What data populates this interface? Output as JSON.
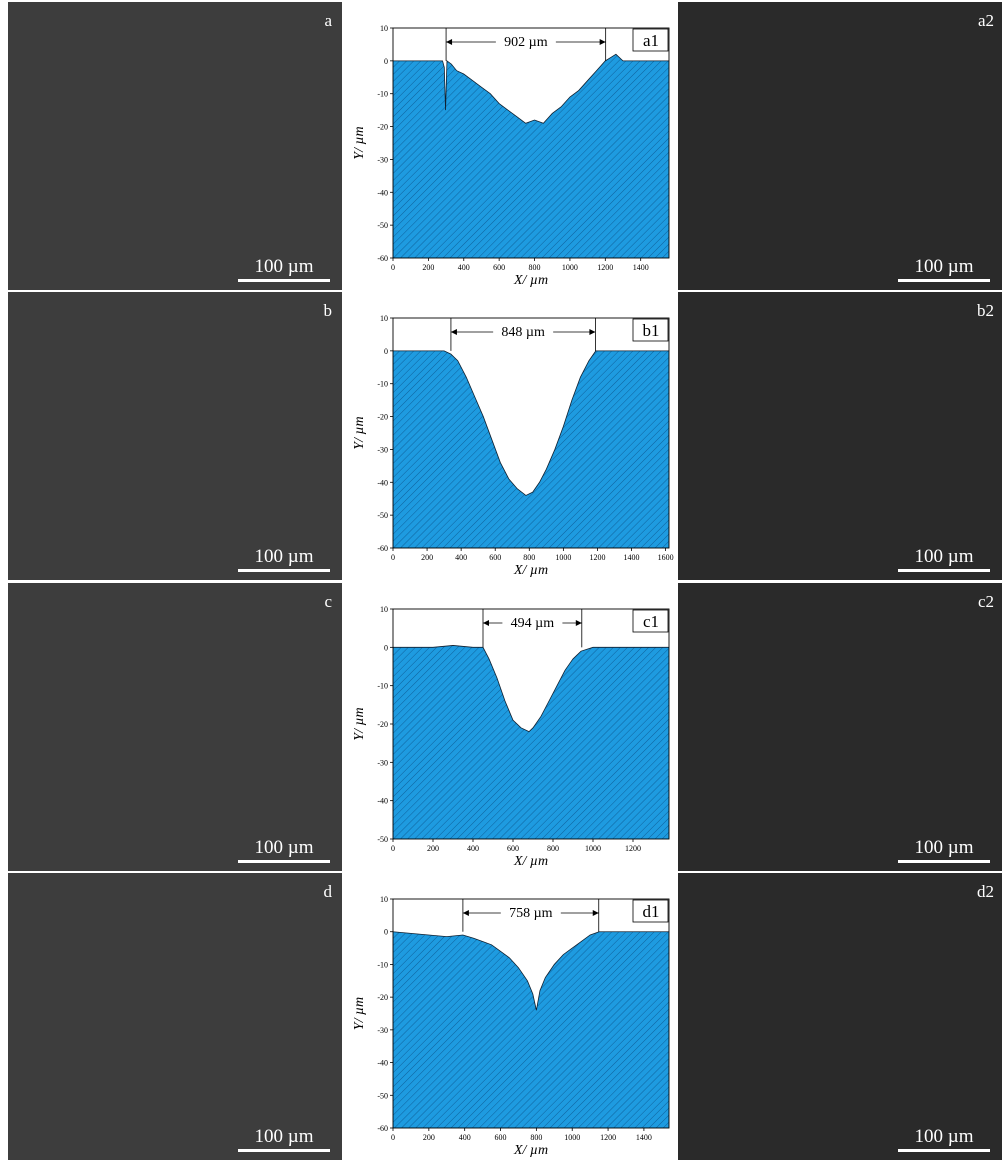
{
  "figure": {
    "micrographs": [
      {
        "label": "a",
        "scale": "100 µm"
      },
      {
        "label": "b",
        "scale": "100 µm"
      },
      {
        "label": "c",
        "scale": "100 µm"
      },
      {
        "label": "d",
        "scale": "100 µm"
      }
    ],
    "debris": [
      {
        "label": "a2",
        "scale": "100 µm"
      },
      {
        "label": "b2",
        "scale": "100 µm"
      },
      {
        "label": "c2",
        "scale": "100 µm"
      },
      {
        "label": "d2",
        "scale": "100 µm"
      }
    ]
  },
  "chart_data": [
    {
      "type": "area",
      "panel": "a1",
      "width_label": "902 µm",
      "xlabel": "X/ µm",
      "ylabel": "Y/ µm",
      "xlim": [
        0,
        1560
      ],
      "ylim": [
        -60,
        10
      ],
      "xticks": [
        0,
        200,
        400,
        600,
        800,
        1000,
        1200,
        1400
      ],
      "yticks": [
        10,
        0,
        -10,
        -20,
        -30,
        -40,
        -50,
        -60
      ],
      "width_span": [
        300,
        1202
      ],
      "x": [
        0,
        280,
        290,
        297,
        305,
        330,
        360,
        400,
        450,
        500,
        550,
        600,
        650,
        700,
        750,
        800,
        850,
        900,
        950,
        1000,
        1050,
        1100,
        1150,
        1200,
        1230,
        1260,
        1300,
        1400,
        1560
      ],
      "y": [
        0,
        0,
        -2,
        -15,
        0,
        -1,
        -3,
        -4,
        -6,
        -8,
        -10,
        -13,
        -15,
        -17,
        -19,
        -18,
        -19,
        -16,
        -14,
        -11,
        -9,
        -6,
        -3,
        0,
        1,
        2,
        0,
        0,
        0
      ]
    },
    {
      "type": "area",
      "panel": "b1",
      "width_label": "848 µm",
      "xlabel": "X/ µm",
      "ylabel": "Y/ µm",
      "xlim": [
        0,
        1620
      ],
      "ylim": [
        -60,
        10
      ],
      "xticks": [
        0,
        200,
        400,
        600,
        800,
        1000,
        1200,
        1400,
        1600
      ],
      "yticks": [
        10,
        0,
        -10,
        -20,
        -30,
        -40,
        -50,
        -60
      ],
      "width_span": [
        340,
        1188
      ],
      "x": [
        0,
        300,
        340,
        380,
        430,
        480,
        530,
        580,
        630,
        680,
        730,
        780,
        820,
        860,
        900,
        950,
        1000,
        1050,
        1100,
        1150,
        1190,
        1250,
        1620
      ],
      "y": [
        0,
        0,
        -1,
        -3,
        -8,
        -14,
        -20,
        -27,
        -34,
        -39,
        -42,
        -44,
        -43,
        -40,
        -36,
        -30,
        -23,
        -15,
        -8,
        -3,
        0,
        0,
        0
      ]
    },
    {
      "type": "area",
      "panel": "c1",
      "width_label": "494 µm",
      "xlabel": "X/ µm",
      "ylabel": "Y/ µm",
      "xlim": [
        0,
        1380
      ],
      "ylim": [
        -50,
        10
      ],
      "xticks": [
        0,
        200,
        400,
        600,
        800,
        1000,
        1200
      ],
      "yticks": [
        10,
        0,
        -10,
        -20,
        -30,
        -40,
        -50
      ],
      "width_span": [
        450,
        944
      ],
      "x": [
        0,
        200,
        300,
        400,
        450,
        480,
        520,
        560,
        600,
        640,
        680,
        700,
        740,
        780,
        820,
        860,
        900,
        940,
        1000,
        1100,
        1200,
        1380
      ],
      "y": [
        0,
        0,
        0.5,
        0,
        0,
        -3,
        -8,
        -14,
        -19,
        -21,
        -22,
        -21,
        -18,
        -14,
        -10,
        -6,
        -3,
        -1,
        0,
        0,
        0,
        0
      ]
    },
    {
      "type": "area",
      "panel": "d1",
      "width_label": "758 µm",
      "xlabel": "X/ µm",
      "ylabel": "Y/ µm",
      "xlim": [
        0,
        1540
      ],
      "ylim": [
        -60,
        10
      ],
      "xticks": [
        0,
        200,
        400,
        600,
        800,
        1000,
        1200,
        1400
      ],
      "yticks": [
        10,
        0,
        -10,
        -20,
        -30,
        -40,
        -50,
        -60
      ],
      "width_span": [
        390,
        1148
      ],
      "x": [
        0,
        200,
        300,
        390,
        450,
        500,
        550,
        600,
        650,
        700,
        750,
        780,
        800,
        820,
        850,
        900,
        950,
        1000,
        1050,
        1100,
        1150,
        1200,
        1540
      ],
      "y": [
        0,
        -1,
        -1.5,
        -1,
        -2,
        -3,
        -4,
        -6,
        -8,
        -11,
        -15,
        -19,
        -24,
        -18,
        -14,
        -10,
        -7,
        -5,
        -3,
        -1,
        0,
        0,
        0
      ]
    }
  ]
}
